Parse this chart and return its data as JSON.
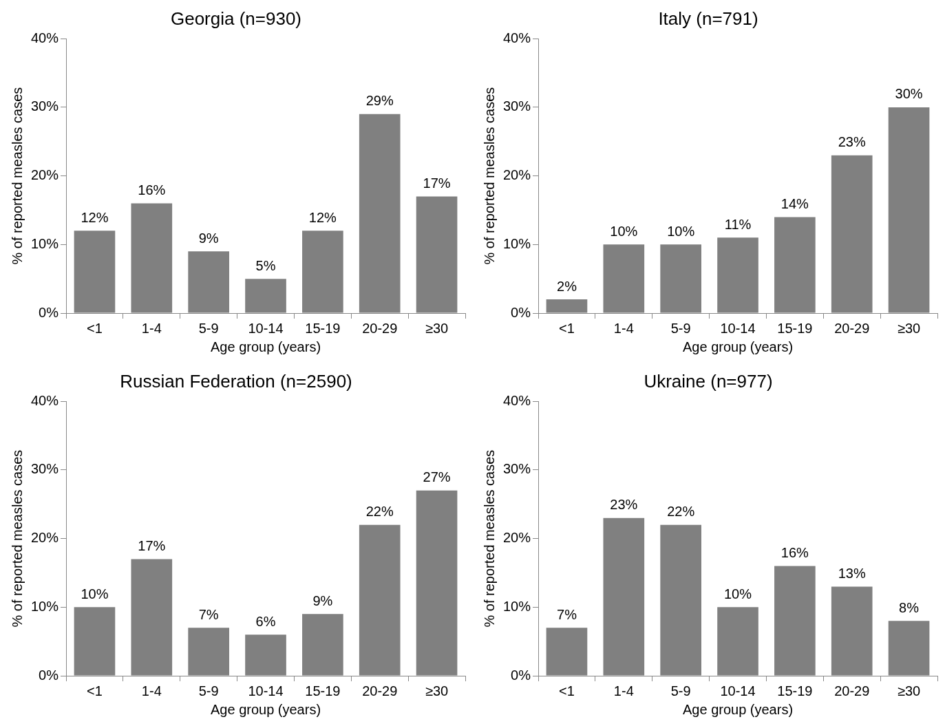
{
  "chart_data": [
    {
      "type": "bar",
      "title": "Georgia (n=930)",
      "xlabel": "Age group (years)",
      "ylabel": "% of reported measles cases",
      "categories": [
        "<1",
        "1-4",
        "5-9",
        "10-14",
        "15-19",
        "20-29",
        "≥30"
      ],
      "values": [
        12,
        16,
        9,
        5,
        12,
        29,
        17
      ],
      "value_labels": [
        "12%",
        "16%",
        "9%",
        "5%",
        "12%",
        "29%",
        "17%"
      ],
      "color": "#808080",
      "ylim": [
        0,
        40
      ],
      "yticks": [
        {
          "value": 0,
          "label": "0%"
        },
        {
          "value": 10,
          "label": "10%"
        },
        {
          "value": 20,
          "label": "20%"
        },
        {
          "value": 30,
          "label": "30%"
        },
        {
          "value": 40,
          "label": "40%"
        }
      ]
    },
    {
      "type": "bar",
      "title": "Italy (n=791)",
      "xlabel": "Age group (years)",
      "ylabel": "% of reported measles cases",
      "categories": [
        "<1",
        "1-4",
        "5-9",
        "10-14",
        "15-19",
        "20-29",
        "≥30"
      ],
      "values": [
        2,
        10,
        10,
        11,
        14,
        23,
        30
      ],
      "value_labels": [
        "2%",
        "10%",
        "10%",
        "11%",
        "14%",
        "23%",
        "30%"
      ],
      "color": "#808080",
      "ylim": [
        0,
        40
      ],
      "yticks": [
        {
          "value": 0,
          "label": "0%"
        },
        {
          "value": 10,
          "label": "10%"
        },
        {
          "value": 20,
          "label": "20%"
        },
        {
          "value": 30,
          "label": "30%"
        },
        {
          "value": 40,
          "label": "40%"
        }
      ]
    },
    {
      "type": "bar",
      "title": "Russian Federation (n=2590)",
      "xlabel": "Age group (years)",
      "ylabel": "% of reported measles cases",
      "categories": [
        "<1",
        "1-4",
        "5-9",
        "10-14",
        "15-19",
        "20-29",
        "≥30"
      ],
      "values": [
        10,
        17,
        7,
        6,
        9,
        22,
        27
      ],
      "value_labels": [
        "10%",
        "17%",
        "7%",
        "6%",
        "9%",
        "22%",
        "27%"
      ],
      "color": "#808080",
      "ylim": [
        0,
        40
      ],
      "yticks": [
        {
          "value": 0,
          "label": "0%"
        },
        {
          "value": 10,
          "label": "10%"
        },
        {
          "value": 20,
          "label": "20%"
        },
        {
          "value": 30,
          "label": "30%"
        },
        {
          "value": 40,
          "label": "40%"
        }
      ]
    },
    {
      "type": "bar",
      "title": "Ukraine (n=977)",
      "xlabel": "Age group (years)",
      "ylabel": "% of reported measles cases",
      "categories": [
        "<1",
        "1-4",
        "5-9",
        "10-14",
        "15-19",
        "20-29",
        "≥30"
      ],
      "values": [
        7,
        23,
        22,
        10,
        16,
        13,
        8
      ],
      "value_labels": [
        "7%",
        "23%",
        "22%",
        "10%",
        "16%",
        "13%",
        "8%"
      ],
      "color": "#808080",
      "ylim": [
        0,
        40
      ],
      "yticks": [
        {
          "value": 0,
          "label": "0%"
        },
        {
          "value": 10,
          "label": "10%"
        },
        {
          "value": 20,
          "label": "20%"
        },
        {
          "value": 30,
          "label": "30%"
        },
        {
          "value": 40,
          "label": "40%"
        }
      ]
    }
  ]
}
